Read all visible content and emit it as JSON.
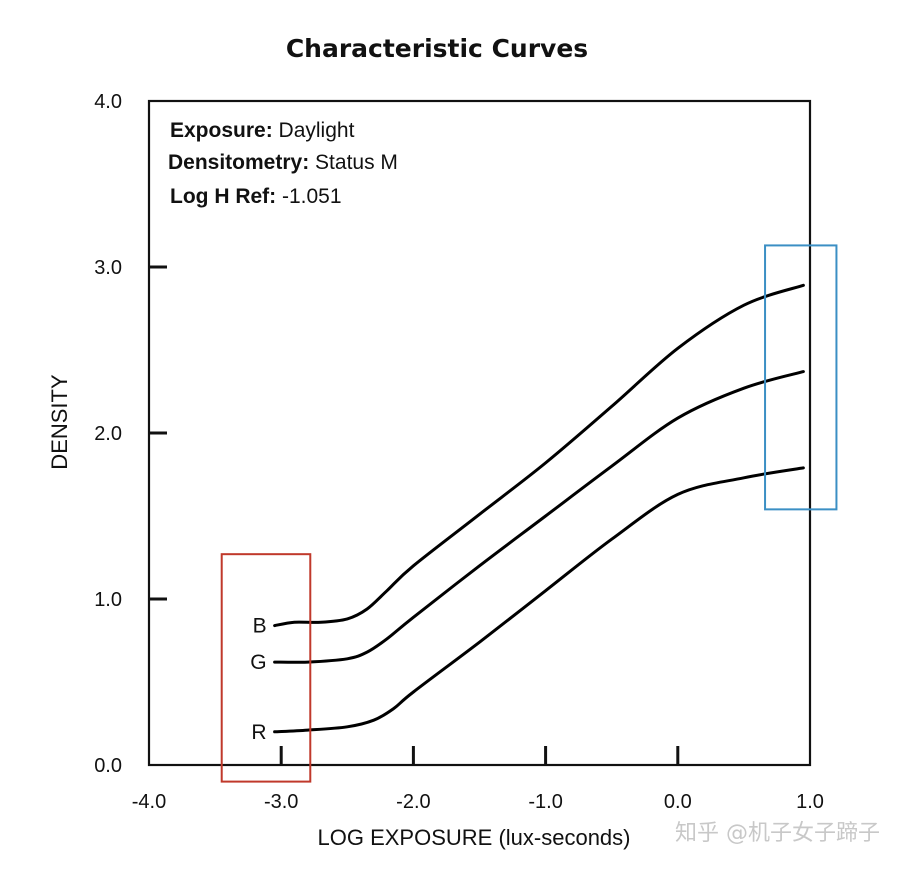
{
  "chart_data": {
    "type": "line",
    "title": "Characteristic Curves",
    "xlabel": "LOG EXPOSURE (lux-seconds)",
    "ylabel": "DENSITY",
    "xlim": [
      -4.0,
      1.0
    ],
    "ylim": [
      0.0,
      4.0
    ],
    "x_ticks": [
      "-4.0",
      "-3.0",
      "-2.0",
      "-1.0",
      "0.0",
      "1.0"
    ],
    "y_ticks": [
      "0.0",
      "1.0",
      "2.0",
      "3.0",
      "4.0"
    ],
    "x_tick_values": [
      -4.0,
      -3.0,
      -2.0,
      -1.0,
      0.0,
      1.0
    ],
    "y_tick_values": [
      0.0,
      1.0,
      2.0,
      3.0,
      4.0
    ],
    "grid": false,
    "info": [
      {
        "key": "Exposure:",
        "value": "Daylight"
      },
      {
        "key": "Densitometry:",
        "value": "Status M"
      },
      {
        "key": "Log H Ref:",
        "value": "-1.051"
      }
    ],
    "series": [
      {
        "name": "B",
        "color": "#000000",
        "points": [
          [
            -3.05,
            0.84
          ],
          [
            -2.9,
            0.86
          ],
          [
            -2.7,
            0.86
          ],
          [
            -2.5,
            0.88
          ],
          [
            -2.35,
            0.94
          ],
          [
            -2.2,
            1.05
          ],
          [
            -2.0,
            1.2
          ],
          [
            -1.5,
            1.51
          ],
          [
            -1.0,
            1.82
          ],
          [
            -0.5,
            2.16
          ],
          [
            0.0,
            2.51
          ],
          [
            0.5,
            2.77
          ],
          [
            0.95,
            2.89
          ]
        ]
      },
      {
        "name": "G",
        "color": "#000000",
        "points": [
          [
            -3.05,
            0.62
          ],
          [
            -2.8,
            0.62
          ],
          [
            -2.5,
            0.64
          ],
          [
            -2.35,
            0.68
          ],
          [
            -2.2,
            0.76
          ],
          [
            -2.0,
            0.89
          ],
          [
            -1.5,
            1.2
          ],
          [
            -1.0,
            1.5
          ],
          [
            -0.5,
            1.8
          ],
          [
            0.0,
            2.09
          ],
          [
            0.5,
            2.27
          ],
          [
            0.95,
            2.37
          ]
        ]
      },
      {
        "name": "R",
        "color": "#000000",
        "points": [
          [
            -3.05,
            0.2
          ],
          [
            -2.8,
            0.21
          ],
          [
            -2.5,
            0.23
          ],
          [
            -2.3,
            0.27
          ],
          [
            -2.15,
            0.34
          ],
          [
            -2.0,
            0.44
          ],
          [
            -1.5,
            0.74
          ],
          [
            -1.0,
            1.05
          ],
          [
            -0.5,
            1.36
          ],
          [
            0.0,
            1.63
          ],
          [
            0.5,
            1.73
          ],
          [
            0.95,
            1.79
          ]
        ]
      }
    ],
    "annotations": {
      "highlight_low": {
        "color": "#c0392b",
        "x_range": [
          -3.45,
          -2.78
        ],
        "y_range": [
          -0.1,
          1.27
        ]
      },
      "highlight_high": {
        "color": "#3b8fc4",
        "x_range": [
          0.66,
          1.2
        ],
        "y_range": [
          1.54,
          3.13
        ]
      }
    }
  },
  "watermark": "知乎 @机子女子蹄子"
}
